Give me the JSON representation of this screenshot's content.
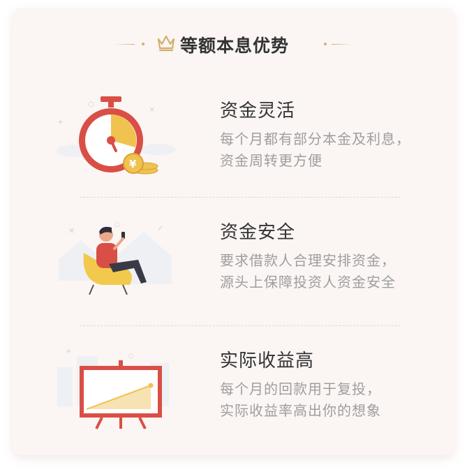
{
  "header": {
    "title": "等额本息优势",
    "icon": "crown-icon",
    "accent_color": "#d4ae6a"
  },
  "features": [
    {
      "icon": "stopwatch-coin-icon",
      "title": "资金灵活",
      "desc_line1": "每个月都有部分本金及利息，",
      "desc_line2": "资金周转更方便"
    },
    {
      "icon": "person-armchair-icon",
      "title": "资金安全",
      "desc_line1": "要求借款人合理安排资金，",
      "desc_line2": "源头上保障投资人资金安全"
    },
    {
      "icon": "chart-board-icon",
      "title": "实际收益高",
      "desc_line1": "每个月的回款用于复投，",
      "desc_line2": "实际收益率高出你的想象"
    }
  ],
  "colors": {
    "card_bg": "#fbf5f4",
    "title": "#333333",
    "desc": "#9e9e9e",
    "red": "#d94f45",
    "gold": "#f0c24f"
  }
}
